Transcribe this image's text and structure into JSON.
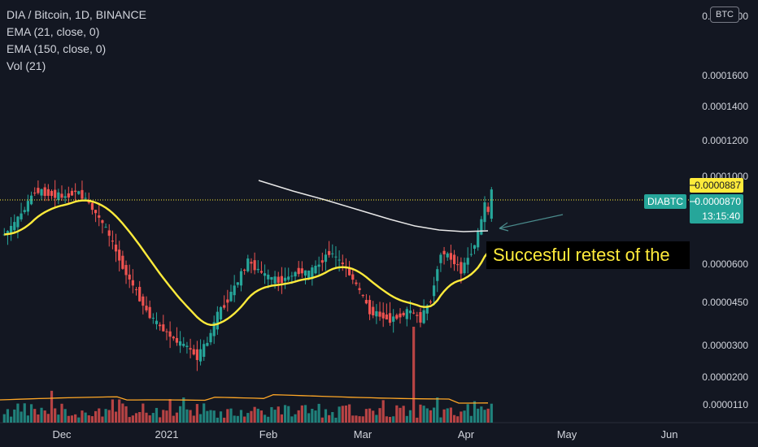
{
  "legend": {
    "title": "DIA / Bitcoin, 1D, BINANCE",
    "ema21": "EMA (21, close, 0)",
    "ema150": "EMA (150, close, 0)",
    "vol": "Vol (21)"
  },
  "currency_badge": "BTC",
  "annotation": "Succesful retest of the ",
  "price_labels": {
    "line_price": "0.0000887",
    "symbol": "DIABTC",
    "last_price": "0.0000870",
    "countdown": "13:15:40"
  },
  "colors": {
    "background": "#131722",
    "up": "#26a69a",
    "down": "#ef5350",
    "ema21": "#ffeb3b",
    "ema150": "#e8e8e8",
    "volume_ma": "#ffa726",
    "price_line": "#ffeb3b",
    "symbol_badge": "#26a69a"
  },
  "chart_data": {
    "type": "candlestick",
    "y_scale": "log",
    "y_ticks": [
      "0.0001600",
      "0.0001400",
      "0.0001200",
      "0.0001000",
      "0.0000600",
      "0.0000450",
      "0.0000300",
      "0.0000200",
      "0.0000110"
    ],
    "x_ticks": [
      "Dec",
      "2021",
      "Feb",
      "Mar",
      "Apr",
      "May",
      "Jun"
    ],
    "close_points": [
      [
        "Nov 14",
        7e-05
      ],
      [
        "Nov 17",
        7.4e-05
      ],
      [
        "Nov 20",
        8e-05
      ],
      [
        "Nov 23",
        8.8e-05
      ],
      [
        "Nov 26",
        8.7e-05
      ],
      [
        "Nov 29",
        8.6e-05
      ],
      [
        "Dec 2",
        8.5e-05
      ],
      [
        "Dec 5",
        8.8e-05
      ],
      [
        "Dec 8",
        8.4e-05
      ],
      [
        "Dec 11",
        7.8e-05
      ],
      [
        "Dec 14",
        7.2e-05
      ],
      [
        "Dec 17",
        6.4e-05
      ],
      [
        "Dec 20",
        5.7e-05
      ],
      [
        "Dec 23",
        5.2e-05
      ],
      [
        "Dec 26",
        4.7e-05
      ],
      [
        "Dec 29",
        4.4e-05
      ],
      [
        "Jan 1",
        4.2e-05
      ],
      [
        "Jan 4",
        4e-05
      ],
      [
        "Jan 7",
        3.9e-05
      ],
      [
        "Jan 10",
        3.7e-05
      ],
      [
        "Jan 13",
        4e-05
      ],
      [
        "Jan 16",
        4.6e-05
      ],
      [
        "Jan 19",
        5e-05
      ],
      [
        "Jan 22",
        5.5e-05
      ],
      [
        "Jan 25",
        6.1e-05
      ],
      [
        "Jan 28",
        5.8e-05
      ],
      [
        "Jan 31",
        5.6e-05
      ],
      [
        "Feb 3",
        5.5e-05
      ],
      [
        "Feb 6",
        5.6e-05
      ],
      [
        "Feb 9",
        5.8e-05
      ],
      [
        "Feb 12",
        5.7e-05
      ],
      [
        "Feb 15",
        6e-05
      ],
      [
        "Feb 18",
        6.4e-05
      ],
      [
        "Feb 21",
        6.1e-05
      ],
      [
        "Feb 24",
        5.7e-05
      ],
      [
        "Feb 27",
        5.2e-05
      ],
      [
        "Mar 2",
        4.7e-05
      ],
      [
        "Mar 5",
        4.6e-05
      ],
      [
        "Mar 8",
        4.5e-05
      ],
      [
        "Mar 11",
        4.6e-05
      ],
      [
        "Mar 14",
        4.7e-05
      ],
      [
        "Mar 17",
        4.5e-05
      ],
      [
        "Mar 20",
        5e-05
      ],
      [
        "Mar 23",
        6.4e-05
      ],
      [
        "Mar 26",
        6.2e-05
      ],
      [
        "Mar 29",
        5.8e-05
      ],
      [
        "Apr 1",
        6.4e-05
      ],
      [
        "Apr 3",
        7e-05
      ],
      [
        "Apr 5",
        8.2e-05
      ],
      [
        "Apr 6",
        7.8e-05
      ],
      [
        "Apr 7",
        8.7e-05
      ]
    ],
    "ema21": "yellow moving average, below price from late March, last ≈ 0.0000730",
    "ema150": "white moving average from mid Jan to Apr 7, ≈ 0.0000960 → 0.0000760",
    "volume": "bars at bottom with orange 21-period volume MA"
  }
}
